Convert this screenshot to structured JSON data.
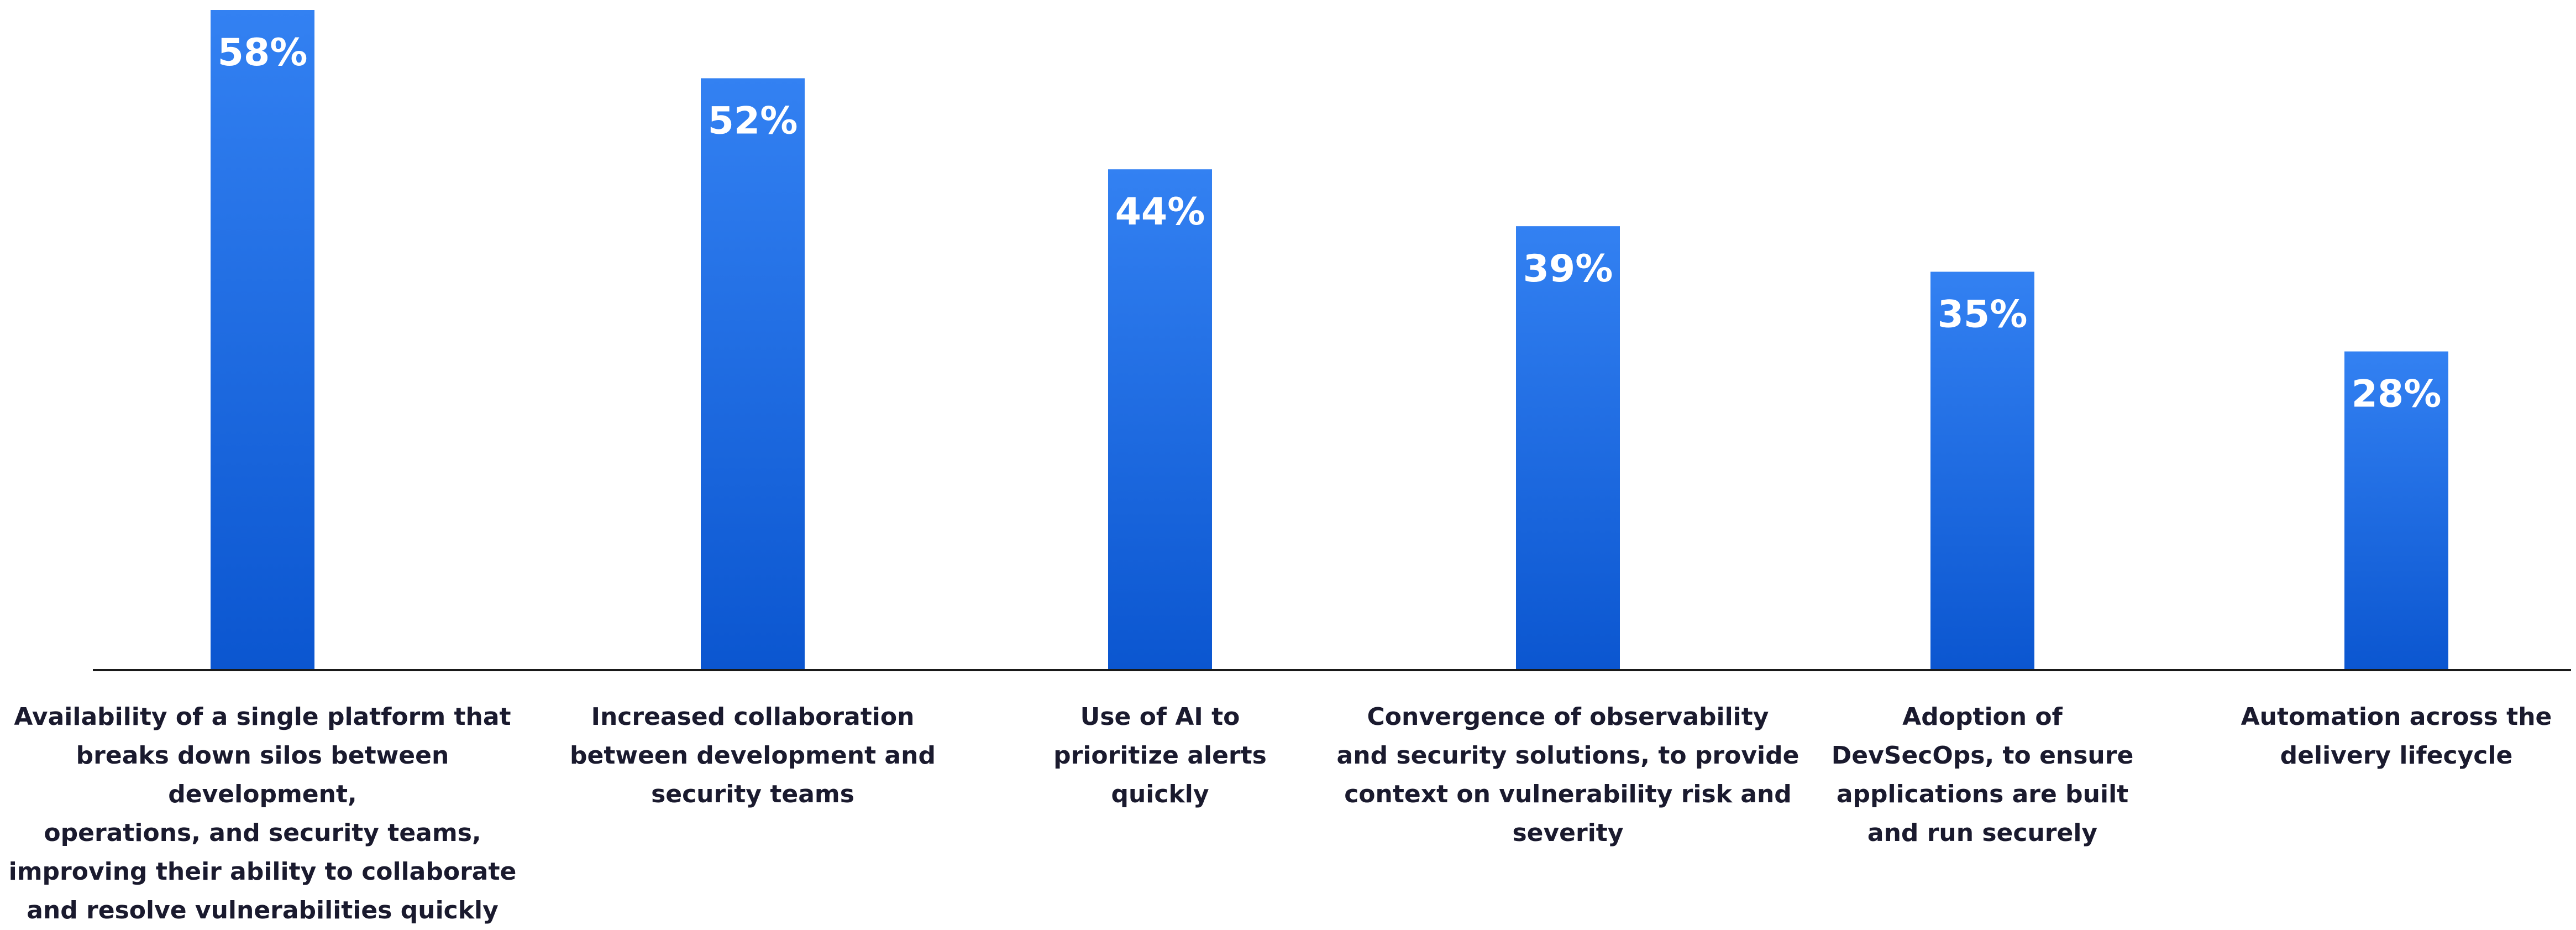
{
  "chart_data": {
    "type": "bar",
    "title": "",
    "xlabel": "",
    "ylabel": "",
    "ylim": [
      0,
      58
    ],
    "grid": false,
    "legend": "none",
    "bar_color_top": "#3381f2",
    "bar_color_bottom": "#0b56d0",
    "label_color": "#ffffff",
    "categories": [
      "Availability of a single platform that\nbreaks down silos between development,\noperations, and security teams,\nimproving their ability to collaborate\nand resolve vulnerabilities quickly",
      "Increased collaboration\nbetween development and\nsecurity teams",
      "Use of AI to\nprioritize alerts\nquickly",
      "Convergence of observability\nand security solutions, to provide\ncontext on vulnerability risk and\nseverity",
      "Adoption of\nDevSecOps, to ensure\napplications are built\nand run securely",
      "Automation across the\ndelivery lifecycle"
    ],
    "values": [
      58,
      52,
      44,
      39,
      35,
      28
    ],
    "value_labels": [
      "58%",
      "52%",
      "44%",
      "39%",
      "35%",
      "28%"
    ]
  }
}
